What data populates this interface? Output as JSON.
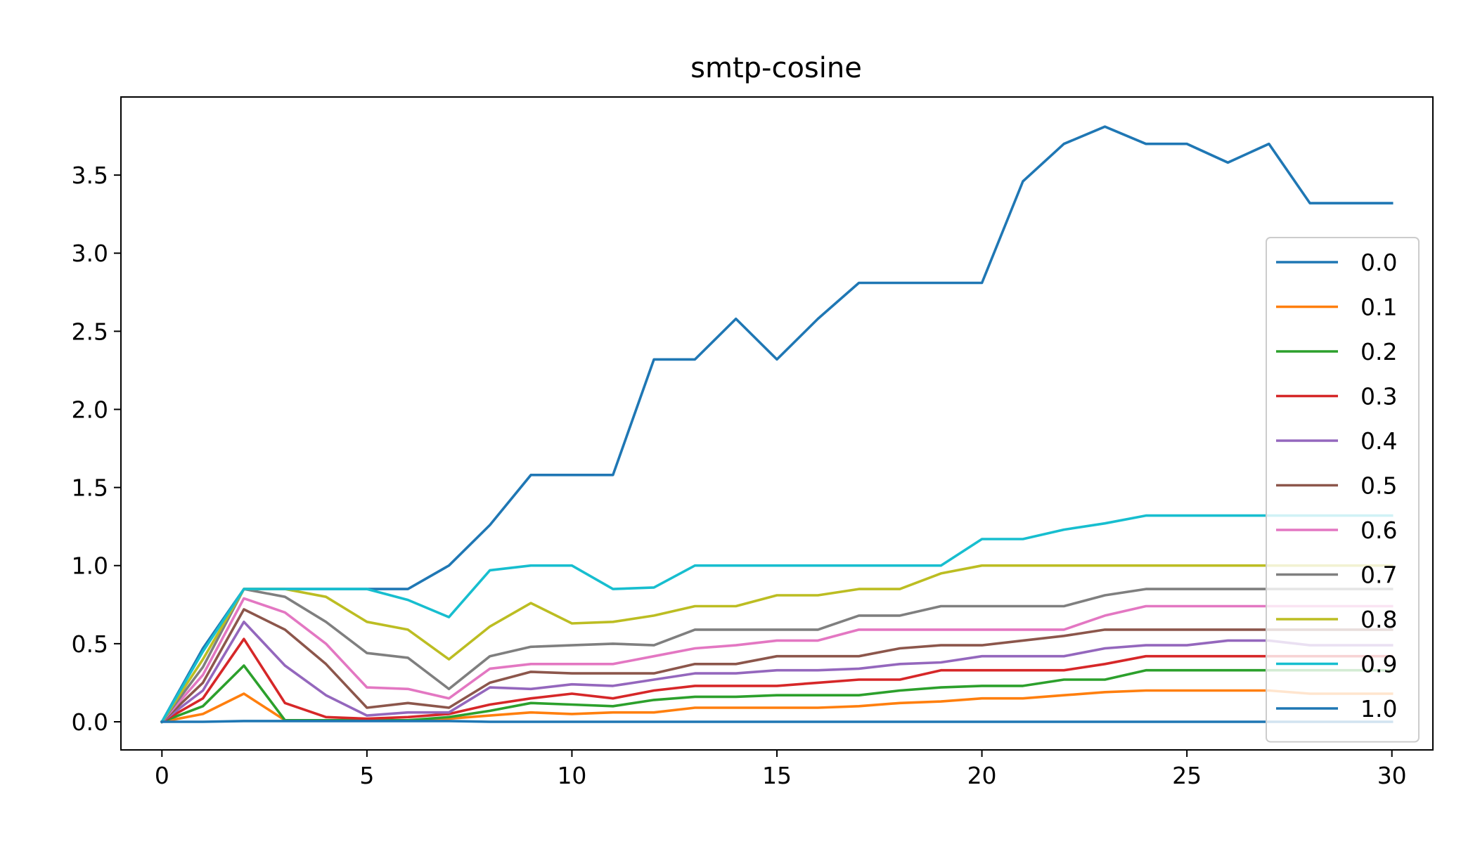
{
  "chart_data": {
    "type": "line",
    "title": "smtp-cosine",
    "xlabel": "",
    "ylabel": "",
    "xlim": [
      -1,
      31
    ],
    "ylim": [
      -0.18,
      4.0
    ],
    "xticks": [
      0,
      5,
      10,
      15,
      20,
      25,
      30
    ],
    "xtick_labels": [
      "0",
      "5",
      "10",
      "15",
      "20",
      "25",
      "30"
    ],
    "yticks": [
      0.0,
      0.5,
      1.0,
      1.5,
      2.0,
      2.5,
      3.0,
      3.5
    ],
    "ytick_labels": [
      "0.0",
      "0.5",
      "1.0",
      "1.5",
      "2.0",
      "2.5",
      "3.0",
      "3.5"
    ],
    "grid": false,
    "legend_position": "lower-right",
    "x": [
      0,
      1,
      2,
      3,
      4,
      5,
      6,
      7,
      8,
      9,
      10,
      11,
      12,
      13,
      14,
      15,
      16,
      17,
      18,
      19,
      20,
      21,
      22,
      23,
      24,
      25,
      26,
      27,
      28,
      29,
      30
    ],
    "series": [
      {
        "name": "0.0",
        "color": "#1f77b4",
        "values": [
          0,
          0.47,
          0.85,
          0.85,
          0.85,
          0.85,
          0.85,
          1.0,
          1.26,
          1.58,
          1.58,
          1.58,
          2.32,
          2.32,
          2.58,
          2.32,
          2.58,
          2.81,
          2.81,
          2.81,
          2.81,
          3.46,
          3.7,
          3.81,
          3.7,
          3.7,
          3.58,
          3.7,
          3.32,
          3.32,
          3.32
        ]
      },
      {
        "name": "0.1",
        "color": "#ff7f0e",
        "values": [
          0,
          0.05,
          0.18,
          0.01,
          0.01,
          0.01,
          0.01,
          0.02,
          0.04,
          0.06,
          0.05,
          0.06,
          0.06,
          0.09,
          0.09,
          0.09,
          0.09,
          0.1,
          0.12,
          0.13,
          0.15,
          0.15,
          0.17,
          0.19,
          0.2,
          0.2,
          0.2,
          0.2,
          0.18,
          0.18,
          0.18
        ]
      },
      {
        "name": "0.2",
        "color": "#2ca02c",
        "values": [
          0,
          0.1,
          0.36,
          0.01,
          0.01,
          0.01,
          0.01,
          0.03,
          0.07,
          0.12,
          0.11,
          0.1,
          0.14,
          0.16,
          0.16,
          0.17,
          0.17,
          0.17,
          0.2,
          0.22,
          0.23,
          0.23,
          0.27,
          0.27,
          0.33,
          0.33,
          0.33,
          0.33,
          0.33,
          0.33,
          0.33
        ]
      },
      {
        "name": "0.3",
        "color": "#d62728",
        "values": [
          0,
          0.15,
          0.53,
          0.12,
          0.03,
          0.02,
          0.03,
          0.05,
          0.11,
          0.15,
          0.18,
          0.15,
          0.2,
          0.23,
          0.23,
          0.23,
          0.25,
          0.27,
          0.27,
          0.33,
          0.33,
          0.33,
          0.33,
          0.37,
          0.42,
          0.42,
          0.42,
          0.42,
          0.42,
          0.42,
          0.42
        ]
      },
      {
        "name": "0.4",
        "color": "#9467bd",
        "values": [
          0,
          0.2,
          0.64,
          0.36,
          0.17,
          0.04,
          0.06,
          0.06,
          0.22,
          0.21,
          0.24,
          0.23,
          0.27,
          0.31,
          0.31,
          0.33,
          0.33,
          0.34,
          0.37,
          0.38,
          0.42,
          0.42,
          0.42,
          0.47,
          0.49,
          0.49,
          0.52,
          0.52,
          0.49,
          0.49,
          0.49
        ]
      },
      {
        "name": "0.5",
        "color": "#8c564b",
        "values": [
          0,
          0.25,
          0.72,
          0.59,
          0.37,
          0.09,
          0.12,
          0.09,
          0.25,
          0.32,
          0.31,
          0.31,
          0.31,
          0.37,
          0.37,
          0.42,
          0.42,
          0.42,
          0.47,
          0.49,
          0.49,
          0.52,
          0.55,
          0.59,
          0.59,
          0.59,
          0.59,
          0.59,
          0.59,
          0.59,
          0.59
        ]
      },
      {
        "name": "0.6",
        "color": "#e377c2",
        "values": [
          0,
          0.3,
          0.79,
          0.7,
          0.5,
          0.22,
          0.21,
          0.15,
          0.34,
          0.37,
          0.37,
          0.37,
          0.42,
          0.47,
          0.49,
          0.52,
          0.52,
          0.59,
          0.59,
          0.59,
          0.59,
          0.59,
          0.59,
          0.68,
          0.74,
          0.74,
          0.74,
          0.74,
          0.74,
          0.74,
          0.74
        ]
      },
      {
        "name": "0.7",
        "color": "#7f7f7f",
        "values": [
          0,
          0.35,
          0.85,
          0.8,
          0.64,
          0.44,
          0.41,
          0.21,
          0.42,
          0.48,
          0.49,
          0.5,
          0.49,
          0.59,
          0.59,
          0.59,
          0.59,
          0.68,
          0.68,
          0.74,
          0.74,
          0.74,
          0.74,
          0.81,
          0.85,
          0.85,
          0.85,
          0.85,
          0.85,
          0.85,
          0.85
        ]
      },
      {
        "name": "0.8",
        "color": "#bcbd22",
        "values": [
          0,
          0.4,
          0.85,
          0.85,
          0.8,
          0.64,
          0.59,
          0.4,
          0.61,
          0.76,
          0.63,
          0.64,
          0.68,
          0.74,
          0.74,
          0.81,
          0.81,
          0.85,
          0.85,
          0.95,
          1.0,
          1.0,
          1.0,
          1.0,
          1.0,
          1.0,
          1.0,
          1.0,
          1.0,
          1.0,
          1.0
        ]
      },
      {
        "name": "0.9",
        "color": "#17becf",
        "values": [
          0,
          0.45,
          0.85,
          0.85,
          0.85,
          0.85,
          0.78,
          0.67,
          0.97,
          1.0,
          1.0,
          0.85,
          0.86,
          1.0,
          1.0,
          1.0,
          1.0,
          1.0,
          1.0,
          1.0,
          1.17,
          1.17,
          1.23,
          1.27,
          1.32,
          1.32,
          1.32,
          1.32,
          1.32,
          1.32,
          1.32
        ]
      },
      {
        "name": "1.0",
        "color": "#1f77b4",
        "values": [
          0,
          0,
          0.005,
          0.005,
          0.005,
          0.005,
          0.005,
          0.005,
          0,
          0,
          0,
          0,
          0,
          0,
          0,
          0,
          0,
          0,
          0,
          0,
          0,
          0,
          0,
          0,
          0,
          0,
          0,
          0,
          0,
          0,
          0
        ]
      }
    ]
  }
}
